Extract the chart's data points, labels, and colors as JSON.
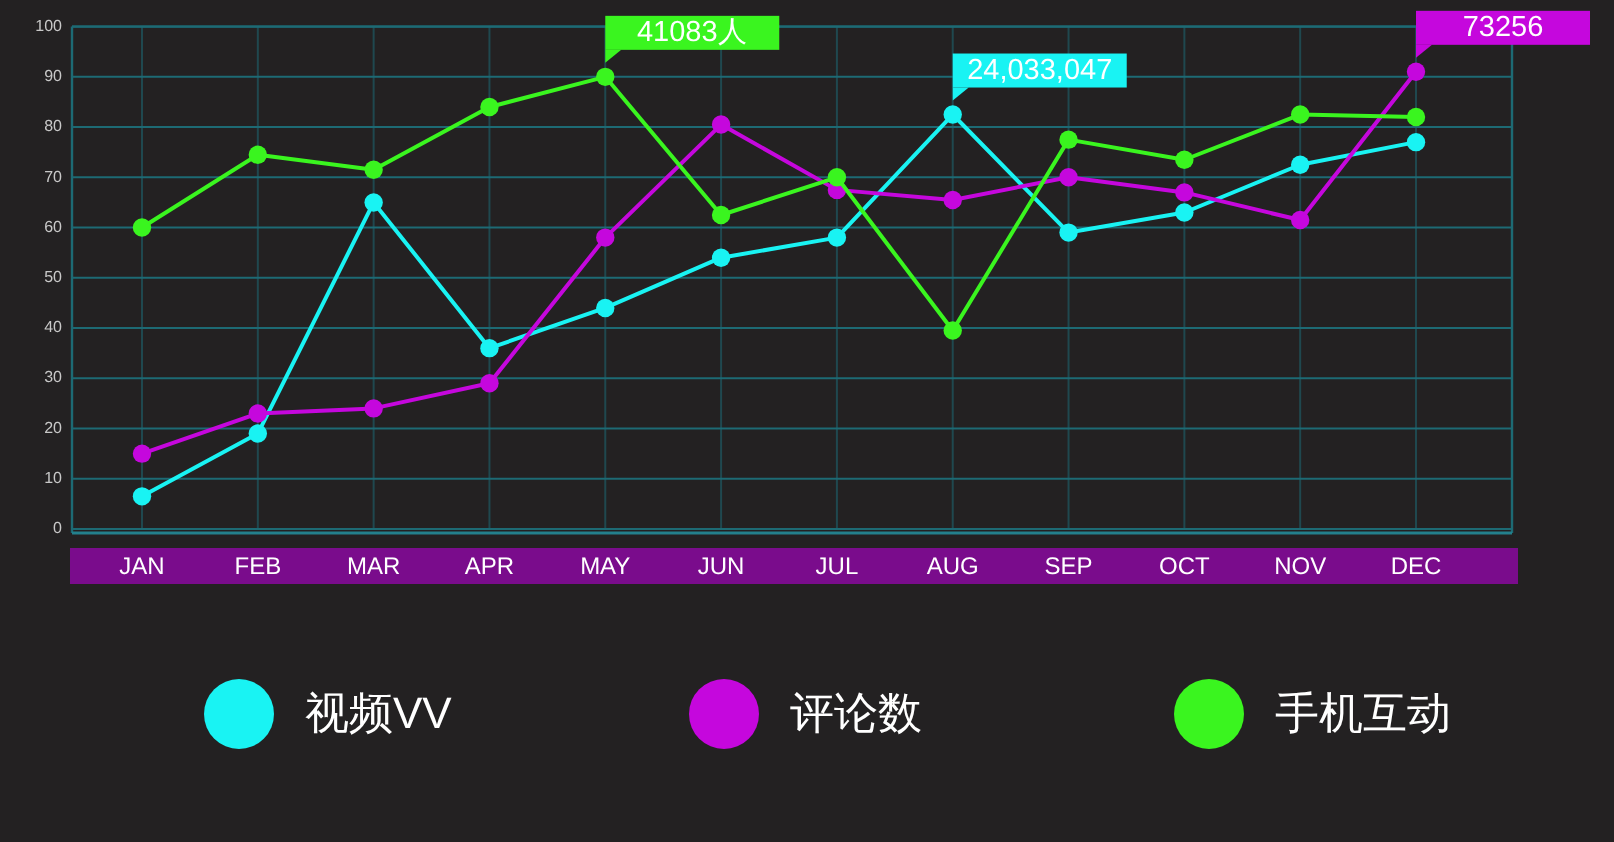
{
  "chart_data": {
    "type": "line",
    "categories": [
      "JAN",
      "FEB",
      "MAR",
      "APR",
      "MAY",
      "JUN",
      "JUL",
      "AUG",
      "SEP",
      "OCT",
      "NOV",
      "DEC"
    ],
    "series": [
      {
        "name": "视频VV",
        "color": "#19f3f3",
        "values": [
          6.5,
          19,
          65,
          36,
          44,
          54,
          58,
          82.5,
          59,
          63,
          72.5,
          77
        ]
      },
      {
        "name": "评论数",
        "color": "#c507dd",
        "values": [
          15,
          23,
          24,
          29,
          58,
          80.5,
          67.5,
          65.5,
          70,
          67,
          61.5,
          91
        ]
      },
      {
        "name": "手机互动",
        "color": "#3af51f",
        "values": [
          60,
          74.5,
          71.5,
          84,
          90,
          62.5,
          70,
          39.5,
          77.5,
          73.5,
          82.5,
          82
        ]
      }
    ],
    "ylim": [
      0,
      100
    ],
    "yticks": [
      0,
      10,
      20,
      30,
      40,
      50,
      60,
      70,
      80,
      90,
      100
    ],
    "grid": true,
    "legend": "bottom",
    "marker": "circle",
    "line_style": "solid",
    "annotations": [
      {
        "text": "41083人",
        "x": "MAY",
        "y": 90
      },
      {
        "text": "24,033,047",
        "x": "AUG",
        "y": 82.5
      },
      {
        "text": "73256",
        "x": "DEC",
        "y": 91
      }
    ]
  }
}
